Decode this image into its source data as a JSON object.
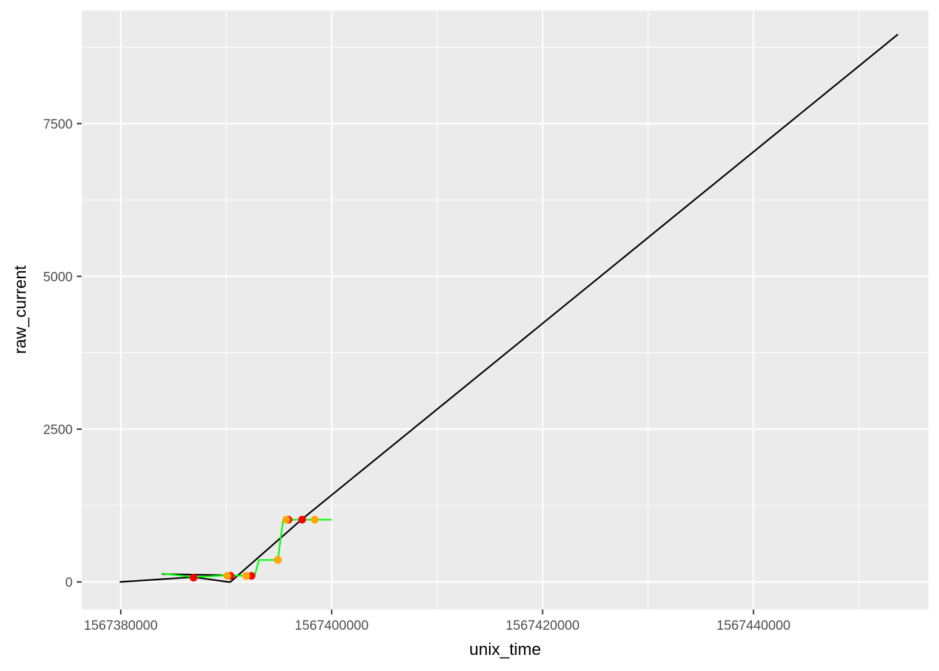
{
  "chart_data": {
    "type": "scatter",
    "title": "",
    "xlabel": "unix_time",
    "ylabel": "raw_current",
    "xlim": [
      1567376300,
      1567456600
    ],
    "ylim": [
      -450,
      9350
    ],
    "x_ticks": [
      1567380000,
      1567400000,
      1567420000,
      1567440000
    ],
    "x_tick_labels": [
      "1567380000",
      "1567400000",
      "1567420000",
      "1567440000"
    ],
    "y_ticks": [
      0,
      2500,
      5000,
      7500
    ],
    "y_tick_labels": [
      "0",
      "2500",
      "5000",
      "7500"
    ],
    "grid": true,
    "legend": "none",
    "colors": {
      "panel_background": "#ebebeb",
      "grid": "#ffffff",
      "axis_text": "#4d4d4d",
      "black_line": "#000000",
      "green_line": "#00ff00",
      "red_points": "#ff0000",
      "orange_points": "#ffa500"
    },
    "series": [
      {
        "kind": "line",
        "color": "#000000",
        "x": [
          1567379900,
          1567386900,
          1567390200,
          1567390400,
          1567397200,
          1567453700
        ],
        "y": [
          0,
          80,
          0,
          0,
          1030,
          8960
        ]
      },
      {
        "kind": "line",
        "color": "#000000",
        "x": [
          1567383900,
          1567389700
        ],
        "y": [
          130,
          110
        ]
      },
      {
        "kind": "line",
        "color": "#00ff00",
        "x": [
          1567383900,
          1567386900,
          1567390200,
          1567392000,
          1567392700,
          1567393100,
          1567394900,
          1567395400,
          1567395700,
          1567396000,
          1567397300,
          1567398400,
          1567400000
        ],
        "y": [
          140,
          80,
          110,
          100,
          100,
          360,
          360,
          1020,
          1020,
          1020,
          1020,
          1020,
          1020
        ]
      },
      {
        "kind": "points",
        "color": "#ff0000",
        "x": [
          1567386900,
          1567390400,
          1567392400,
          1567395900,
          1567397200
        ],
        "y": [
          70,
          100,
          100,
          1020,
          1020
        ]
      },
      {
        "kind": "points",
        "color": "#ffa500",
        "x": [
          1567390100,
          1567391900,
          1567394900,
          1567395700,
          1567398400
        ],
        "y": [
          100,
          100,
          360,
          1020,
          1020
        ]
      }
    ]
  }
}
